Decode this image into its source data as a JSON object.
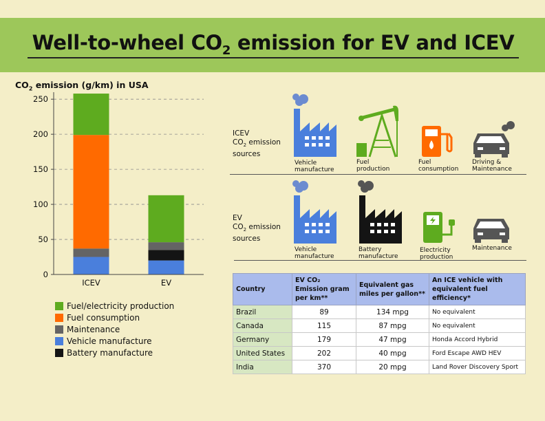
{
  "header": {
    "title_main": "Well-to-wheel CO",
    "title_sub": "2",
    "title_rest": " emission for EV and ICEV"
  },
  "chart_data": {
    "type": "bar",
    "stacked": true,
    "title_main": "CO",
    "title_sub": "2",
    "title_rest": " emission (g/km) in USA",
    "categories": [
      "ICEV",
      "EV"
    ],
    "ylim": [
      0,
      260
    ],
    "yticks": [
      0,
      50,
      100,
      150,
      200,
      250
    ],
    "grid": "horizontal dashed",
    "series": [
      {
        "name": "Vehicle manufacture",
        "color": "#4a7fdc",
        "values": [
          25,
          20
        ]
      },
      {
        "name": "Battery manufacture",
        "color": "#141414",
        "values": [
          0,
          15
        ]
      },
      {
        "name": "Maintenance",
        "color": "#646464",
        "values": [
          12,
          11
        ]
      },
      {
        "name": "Fuel consumption",
        "color": "#ff6a00",
        "values": [
          162,
          0
        ]
      },
      {
        "name": "Fuel/electricity production",
        "color": "#5eab1f",
        "values": [
          59,
          67
        ]
      }
    ],
    "legend_order": [
      "Fuel/electricity production",
      "Fuel consumption",
      "Maintenance",
      "Vehicle manufacture",
      "Battery manufacture"
    ],
    "legend_position": "bottom"
  },
  "icev_panel": {
    "label_line1": "ICEV",
    "label_line2_main": "CO",
    "label_line2_sub": "2",
    "label_line2_rest": " emission",
    "label_line3": "sources",
    "icons": [
      {
        "name": "factory-icon",
        "line1": "Vehicle",
        "line2": "manufacture"
      },
      {
        "name": "oil-pump-icon",
        "line1": "Fuel",
        "line2": "production"
      },
      {
        "name": "fuel-pump-icon",
        "line1": "Fuel",
        "line2": "consumption"
      },
      {
        "name": "car-icon",
        "line1": "Driving &",
        "line2": "Maintenance"
      }
    ]
  },
  "ev_panel": {
    "label_line1": "EV",
    "label_line2_main": "CO",
    "label_line2_sub": "2",
    "label_line2_rest": " emission",
    "label_line3": "sources",
    "icons": [
      {
        "name": "factory-icon",
        "line1": "Vehicle",
        "line2": "manufacture"
      },
      {
        "name": "battery-factory-icon",
        "line1": "Battery",
        "line2": "manufacture"
      },
      {
        "name": "charger-icon",
        "line1": "Electricity",
        "line2": "production"
      },
      {
        "name": "car-icon",
        "line1": "Maintenance",
        "line2": ""
      }
    ]
  },
  "table": {
    "headers": [
      "Country",
      "EV CO₂ Emission gram per km**",
      "Equivalent gas miles per gallon**",
      "An ICE vehicle with equivalent fuel efficiency*"
    ],
    "rows": [
      [
        "Brazil",
        "89",
        "134 mpg",
        "No equivalent"
      ],
      [
        "Canada",
        "115",
        "87 mpg",
        "No equivalent"
      ],
      [
        "Germany",
        "179",
        "47 mpg",
        "Honda Accord Hybrid"
      ],
      [
        "United States",
        "202",
        "40 mpg",
        "Ford Escape AWD HEV"
      ],
      [
        "India",
        "370",
        "20 mpg",
        "Land Rover Discovery Sport"
      ]
    ]
  },
  "colors": {
    "header_bg": "#9dc75a",
    "page_bg": "#f4eec8",
    "icon_blue": "#4a7fdc",
    "icon_green": "#5eab1f",
    "icon_orange": "#ff6a00",
    "icon_dark": "#2b2b2b",
    "table_header": "#aabbec",
    "table_country": "#d7e7c2"
  }
}
